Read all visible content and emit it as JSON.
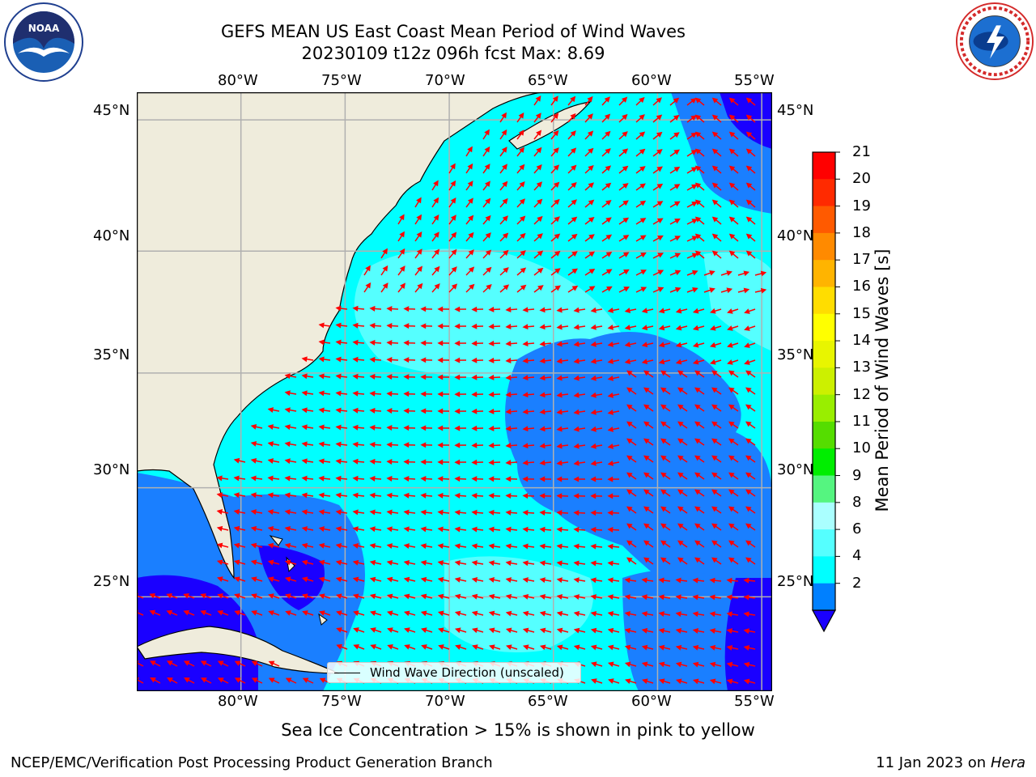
{
  "header": {
    "title_line1": "GEFS MEAN US East Coast Mean Period of Wind Waves",
    "title_line2": "20230109 t12z 096h fcst   Max: 8.69"
  },
  "logos": {
    "left": "noaa-logo",
    "right": "nws-logo"
  },
  "map": {
    "lon_labels": [
      "80°W",
      "75°W",
      "70°W",
      "65°W",
      "60°W",
      "55°W"
    ],
    "lat_labels": [
      "45°N",
      "40°N",
      "35°N",
      "30°N",
      "25°N"
    ],
    "extent": {
      "lon": [
        -85,
        -54.5
      ],
      "lat": [
        20.5,
        46
      ]
    },
    "legend_label": "Wind Wave Direction (unscaled)",
    "colors": {
      "land": "#efecdc",
      "grid": "#b0b0b0",
      "arrow": "#ff0000"
    }
  },
  "colorbar": {
    "label": "Mean Period of Wind Waves [s]",
    "ticks": [
      "21",
      "20",
      "19",
      "18",
      "17",
      "16",
      "15",
      "14",
      "13",
      "12",
      "11",
      "10",
      "9",
      "8",
      "6",
      "4",
      "2"
    ],
    "colors": [
      "#ff0000",
      "#ff2a00",
      "#ff5a00",
      "#ff8a00",
      "#ffb400",
      "#ffdd00",
      "#ffff00",
      "#e8f500",
      "#ccf000",
      "#99ee00",
      "#55dd00",
      "#00ee00",
      "#55f580",
      "#aaffff",
      "#55ffff",
      "#00ffff",
      "#0080ff"
    ],
    "underflow_color": "#1a00ff"
  },
  "caption": "Sea Ice Concentration > 15% is shown in pink to yellow",
  "footer": {
    "left": "NCEP/EMC/Verification Post Processing Product Generation Branch",
    "right_date": "11 Jan 2023 on ",
    "right_host": "Hera"
  }
}
